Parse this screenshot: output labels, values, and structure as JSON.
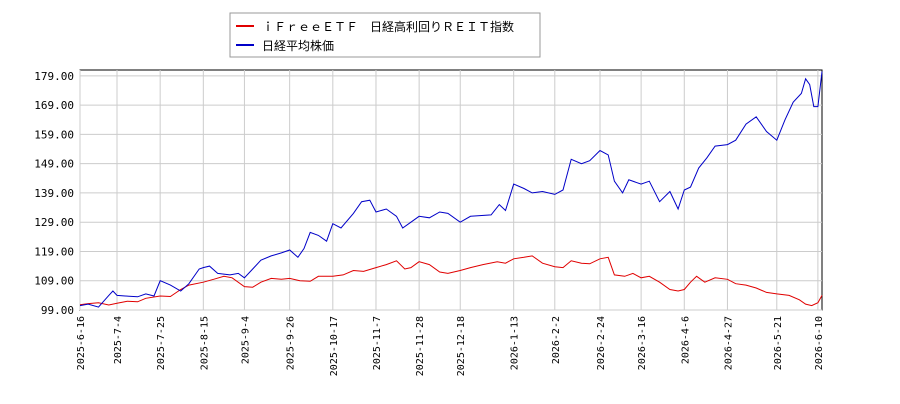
{
  "chart_data": {
    "type": "line",
    "title": "",
    "xlabel": "",
    "ylabel": "",
    "ylim": [
      99.0,
      181.0
    ],
    "yticks": [
      "99.00",
      "109.00",
      "119.00",
      "129.00",
      "139.00",
      "149.00",
      "159.00",
      "169.00",
      "179.00"
    ],
    "ytick_values": [
      99,
      109,
      119,
      129,
      139,
      149,
      159,
      169,
      179
    ],
    "xticks": [
      "2025-6-16",
      "2025-7-4",
      "2025-7-25",
      "2025-8-15",
      "2025-9-4",
      "2025-9-26",
      "2025-10-17",
      "2025-11-7",
      "2025-11-28",
      "2025-12-18",
      "2026-1-13",
      "2026-2-2",
      "2026-2-24",
      "2026-3-16",
      "2026-4-6",
      "2026-4-27",
      "2026-5-21",
      "2026-6-10"
    ],
    "x_start": "2025-06-16",
    "x_end": "2026-06-12",
    "grid": true,
    "legend_position": "top-left",
    "legend": [
      "ｉＦｒｅｅＥＴＦ　日経高利回りＲＥＩＴ指数",
      "日経平均株価"
    ],
    "series": [
      {
        "name": "ｉＦｒｅｅＥＴＦ　日経高利回りＲＥＩＴ指数",
        "color": "#e00000",
        "points": [
          [
            "2025-06-16",
            100.8
          ],
          [
            "2025-06-20",
            101.2
          ],
          [
            "2025-06-25",
            101.5
          ],
          [
            "2025-06-30",
            100.7
          ],
          [
            "2025-07-04",
            101.3
          ],
          [
            "2025-07-09",
            102.0
          ],
          [
            "2025-07-14",
            101.8
          ],
          [
            "2025-07-18",
            103.0
          ],
          [
            "2025-07-25",
            103.8
          ],
          [
            "2025-07-30",
            103.6
          ],
          [
            "2025-08-04",
            106.0
          ],
          [
            "2025-08-08",
            107.5
          ],
          [
            "2025-08-15",
            108.5
          ],
          [
            "2025-08-20",
            109.5
          ],
          [
            "2025-08-25",
            110.5
          ],
          [
            "2025-08-29",
            110.0
          ],
          [
            "2025-09-04",
            107.0
          ],
          [
            "2025-09-08",
            106.8
          ],
          [
            "2025-09-12",
            108.5
          ],
          [
            "2025-09-17",
            109.8
          ],
          [
            "2025-09-22",
            109.5
          ],
          [
            "2025-09-26",
            109.8
          ],
          [
            "2025-10-01",
            109.0
          ],
          [
            "2025-10-06",
            108.8
          ],
          [
            "2025-10-10",
            110.5
          ],
          [
            "2025-10-17",
            110.5
          ],
          [
            "2025-10-22",
            111.0
          ],
          [
            "2025-10-27",
            112.5
          ],
          [
            "2025-11-01",
            112.2
          ],
          [
            "2025-11-07",
            113.5
          ],
          [
            "2025-11-12",
            114.5
          ],
          [
            "2025-11-17",
            115.8
          ],
          [
            "2025-11-21",
            113.0
          ],
          [
            "2025-11-24",
            113.5
          ],
          [
            "2025-11-28",
            115.5
          ],
          [
            "2025-12-03",
            114.5
          ],
          [
            "2025-12-08",
            112.0
          ],
          [
            "2025-12-12",
            111.5
          ],
          [
            "2025-12-18",
            112.5
          ],
          [
            "2025-12-23",
            113.5
          ],
          [
            "2025-12-29",
            114.5
          ],
          [
            "2026-01-05",
            115.5
          ],
          [
            "2026-01-09",
            115.0
          ],
          [
            "2026-01-13",
            116.5
          ],
          [
            "2026-01-18",
            117.0
          ],
          [
            "2026-01-22",
            117.5
          ],
          [
            "2026-01-27",
            115.0
          ],
          [
            "2026-02-02",
            113.8
          ],
          [
            "2026-02-06",
            113.5
          ],
          [
            "2026-02-10",
            115.8
          ],
          [
            "2026-02-15",
            115.0
          ],
          [
            "2026-02-19",
            114.8
          ],
          [
            "2026-02-24",
            116.5
          ],
          [
            "2026-02-28",
            117.0
          ],
          [
            "2026-03-03",
            111.0
          ],
          [
            "2026-03-08",
            110.5
          ],
          [
            "2026-03-12",
            111.5
          ],
          [
            "2026-03-16",
            110.0
          ],
          [
            "2026-03-20",
            110.5
          ],
          [
            "2026-03-25",
            108.5
          ],
          [
            "2026-03-30",
            106.0
          ],
          [
            "2026-04-03",
            105.5
          ],
          [
            "2026-04-06",
            106.0
          ],
          [
            "2026-04-09",
            108.5
          ],
          [
            "2026-04-12",
            110.5
          ],
          [
            "2026-04-16",
            108.5
          ],
          [
            "2026-04-21",
            110.0
          ],
          [
            "2026-04-27",
            109.5
          ],
          [
            "2026-05-01",
            108.0
          ],
          [
            "2026-05-06",
            107.5
          ],
          [
            "2026-05-11",
            106.5
          ],
          [
            "2026-05-16",
            105.0
          ],
          [
            "2026-05-21",
            104.5
          ],
          [
            "2026-05-27",
            104.0
          ],
          [
            "2026-06-01",
            102.5
          ],
          [
            "2026-06-04",
            101.0
          ],
          [
            "2026-06-07",
            100.5
          ],
          [
            "2026-06-10",
            101.5
          ],
          [
            "2026-06-12",
            104.0
          ]
        ]
      },
      {
        "name": "日経平均株価",
        "color": "#0000c8",
        "points": [
          [
            "2025-06-16",
            100.5
          ],
          [
            "2025-06-20",
            101.0
          ],
          [
            "2025-06-25",
            100.0
          ],
          [
            "2025-06-30",
            104.0
          ],
          [
            "2025-07-02",
            105.5
          ],
          [
            "2025-07-04",
            104.0
          ],
          [
            "2025-07-08",
            103.8
          ],
          [
            "2025-07-14",
            103.5
          ],
          [
            "2025-07-18",
            104.5
          ],
          [
            "2025-07-22",
            103.8
          ],
          [
            "2025-07-25",
            109.0
          ],
          [
            "2025-07-30",
            107.5
          ],
          [
            "2025-08-04",
            105.5
          ],
          [
            "2025-08-08",
            108.0
          ],
          [
            "2025-08-13",
            113.0
          ],
          [
            "2025-08-15",
            113.5
          ],
          [
            "2025-08-18",
            114.0
          ],
          [
            "2025-08-22",
            111.5
          ],
          [
            "2025-08-28",
            111.0
          ],
          [
            "2025-09-01",
            111.5
          ],
          [
            "2025-09-04",
            110.0
          ],
          [
            "2025-09-08",
            113.0
          ],
          [
            "2025-09-12",
            116.0
          ],
          [
            "2025-09-17",
            117.5
          ],
          [
            "2025-09-22",
            118.5
          ],
          [
            "2025-09-26",
            119.5
          ],
          [
            "2025-09-30",
            117.0
          ],
          [
            "2025-10-03",
            120.0
          ],
          [
            "2025-10-06",
            125.5
          ],
          [
            "2025-10-10",
            124.5
          ],
          [
            "2025-10-14",
            122.5
          ],
          [
            "2025-10-17",
            128.5
          ],
          [
            "2025-10-21",
            127.0
          ],
          [
            "2025-10-27",
            132.0
          ],
          [
            "2025-10-31",
            136.0
          ],
          [
            "2025-11-04",
            136.5
          ],
          [
            "2025-11-07",
            132.5
          ],
          [
            "2025-11-12",
            133.5
          ],
          [
            "2025-11-17",
            131.0
          ],
          [
            "2025-11-20",
            127.0
          ],
          [
            "2025-11-24",
            129.0
          ],
          [
            "2025-11-28",
            131.0
          ],
          [
            "2025-12-03",
            130.5
          ],
          [
            "2025-12-08",
            132.5
          ],
          [
            "2025-12-12",
            132.0
          ],
          [
            "2025-12-18",
            129.0
          ],
          [
            "2025-12-23",
            131.0
          ],
          [
            "2026-01-02",
            131.5
          ],
          [
            "2026-01-06",
            135.0
          ],
          [
            "2026-01-09",
            133.0
          ],
          [
            "2026-01-13",
            142.0
          ],
          [
            "2026-01-18",
            140.5
          ],
          [
            "2026-01-22",
            139.0
          ],
          [
            "2026-01-27",
            139.5
          ],
          [
            "2026-02-02",
            138.5
          ],
          [
            "2026-02-06",
            140.0
          ],
          [
            "2026-02-10",
            150.5
          ],
          [
            "2026-02-15",
            149.0
          ],
          [
            "2026-02-19",
            150.0
          ],
          [
            "2026-02-24",
            153.5
          ],
          [
            "2026-02-28",
            152.0
          ],
          [
            "2026-03-03",
            143.0
          ],
          [
            "2026-03-07",
            139.0
          ],
          [
            "2026-03-10",
            143.5
          ],
          [
            "2026-03-16",
            142.0
          ],
          [
            "2026-03-20",
            143.0
          ],
          [
            "2026-03-25",
            136.0
          ],
          [
            "2026-03-30",
            139.5
          ],
          [
            "2026-04-03",
            133.5
          ],
          [
            "2026-04-06",
            140.0
          ],
          [
            "2026-04-09",
            141.0
          ],
          [
            "2026-04-13",
            147.5
          ],
          [
            "2026-04-17",
            151.0
          ],
          [
            "2026-04-21",
            155.0
          ],
          [
            "2026-04-27",
            155.5
          ],
          [
            "2026-05-01",
            157.0
          ],
          [
            "2026-05-06",
            162.5
          ],
          [
            "2026-05-11",
            165.0
          ],
          [
            "2026-05-16",
            160.0
          ],
          [
            "2026-05-21",
            157.0
          ],
          [
            "2026-05-25",
            164.0
          ],
          [
            "2026-05-29",
            170.0
          ],
          [
            "2026-06-02",
            173.0
          ],
          [
            "2026-06-04",
            178.0
          ],
          [
            "2026-06-06",
            176.0
          ],
          [
            "2026-06-08",
            168.5
          ],
          [
            "2026-06-10",
            168.5
          ],
          [
            "2026-06-12",
            180.5
          ]
        ]
      }
    ]
  }
}
